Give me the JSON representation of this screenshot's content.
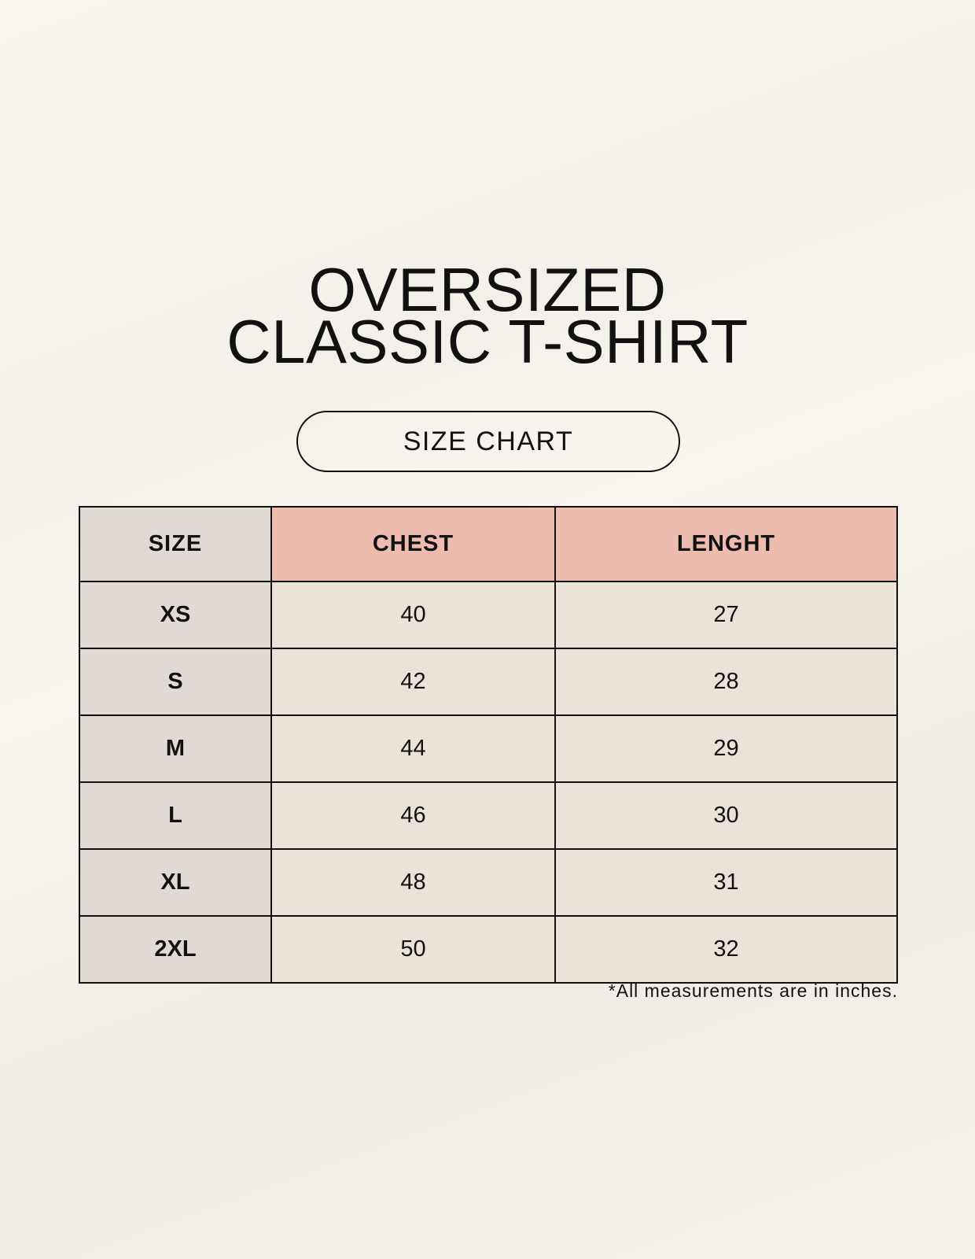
{
  "title_lines": [
    "OVERSIZED",
    "CLASSIC T-SHIRT"
  ],
  "subtitle": "SIZE CHART",
  "table": {
    "headers": [
      "SIZE",
      "CHEST",
      "LENGHT"
    ],
    "rows": [
      [
        "XS",
        "40",
        "27"
      ],
      [
        "S",
        "42",
        "28"
      ],
      [
        "M",
        "44",
        "29"
      ],
      [
        "L",
        "46",
        "30"
      ],
      [
        "XL",
        "48",
        "31"
      ],
      [
        "2XL",
        "50",
        "32"
      ]
    ]
  },
  "footnote": "*All measurements are in inches.",
  "colors": {
    "size_column": "#e1d9d3",
    "header_accent": "#eebcae",
    "cell": "#ebe3d9",
    "background": "#f9f6ef"
  }
}
